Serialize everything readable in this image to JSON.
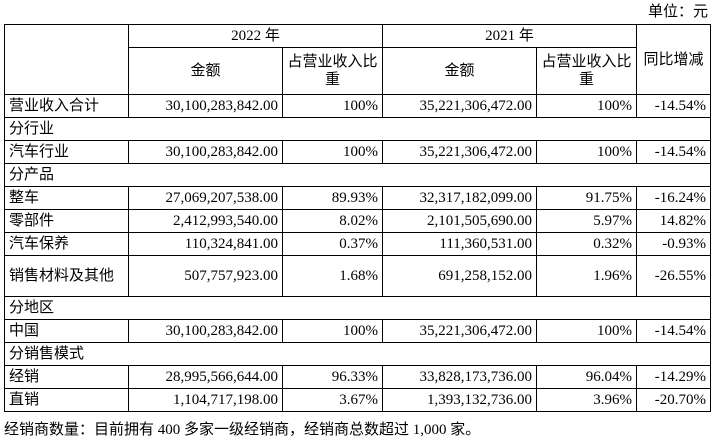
{
  "unit": "单位：元",
  "header": {
    "year_2022": "2022 年",
    "year_2021": "2021 年",
    "amount": "金额",
    "share": "占营业收入比重",
    "change": "同比增减"
  },
  "rows": [
    {
      "label": "营业收入合计",
      "a22": "30,100,283,842.00",
      "p22": "100%",
      "a21": "35,221,306,472.00",
      "p21": "100%",
      "chg": "-14.54%"
    },
    {
      "label": "分行业"
    },
    {
      "label": "汽车行业",
      "a22": "30,100,283,842.00",
      "p22": "100%",
      "a21": "35,221,306,472.00",
      "p21": "100%",
      "chg": "-14.54%"
    },
    {
      "label": "分产品"
    },
    {
      "label": "整车",
      "a22": "27,069,207,538.00",
      "p22": "89.93%",
      "a21": "32,317,182,099.00",
      "p21": "91.75%",
      "chg": "-16.24%"
    },
    {
      "label": "零部件",
      "a22": "2,412,993,540.00",
      "p22": "8.02%",
      "a21": "2,101,505,690.00",
      "p21": "5.97%",
      "chg": "14.82%"
    },
    {
      "label": "汽车保养",
      "a22": "110,324,841.00",
      "p22": "0.37%",
      "a21": "111,360,531.00",
      "p21": "0.32%",
      "chg": "-0.93%"
    },
    {
      "label": "销售材料及其他",
      "a22": "507,757,923.00",
      "p22": "1.68%",
      "a21": "691,258,152.00",
      "p21": "1.96%",
      "chg": "-26.55%"
    },
    {
      "label": "分地区"
    },
    {
      "label": "中国",
      "a22": "30,100,283,842.00",
      "p22": "100%",
      "a21": "35,221,306,472.00",
      "p21": "100%",
      "chg": "-14.54%"
    },
    {
      "label": "分销售模式"
    },
    {
      "label": "经销",
      "a22": "28,995,566,644.00",
      "p22": "96.33%",
      "a21": "33,828,173,736.00",
      "p21": "96.04%",
      "chg": "-14.29%"
    },
    {
      "label": "直销",
      "a22": "1,104,717,198.00",
      "p22": "3.67%",
      "a21": "1,393,132,736.00",
      "p21": "3.96%",
      "chg": "-20.70%"
    }
  ],
  "footnote": "经销商数量：目前拥有 400 多家一级经销商，经销商总数超过 1,000 家。"
}
